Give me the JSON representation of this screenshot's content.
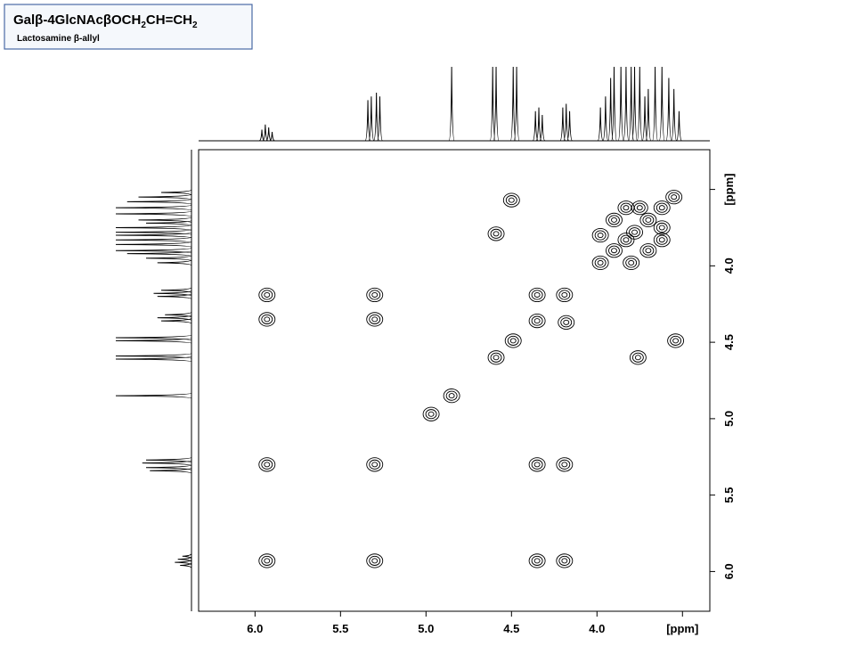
{
  "chart_data": {
    "type": "cosy",
    "title": [
      "Galβ-4GlcNAcβOCH",
      "2",
      "CH=CH",
      "2"
    ],
    "subtitle": "Lactosamine β-allyl",
    "xlim": [
      6.33,
      3.34
    ],
    "ylim": [
      3.24,
      6.26
    ],
    "xticks": [
      {
        "value": 6,
        "label": "6.0"
      },
      {
        "value": 5.5,
        "label": "5.5"
      },
      {
        "value": 5,
        "label": "5.0"
      },
      {
        "value": 4.5,
        "label": "4.5"
      },
      {
        "value": 4,
        "label": "4.0"
      },
      {
        "value": 3.5,
        "label": "[ppm]"
      }
    ],
    "yticks": [
      {
        "value": 3.5,
        "label": "[ppm]"
      },
      {
        "value": 4,
        "label": "4.0"
      },
      {
        "value": 4.5,
        "label": "4.5"
      },
      {
        "value": 5,
        "label": "5.0"
      },
      {
        "value": 5.5,
        "label": "5.5"
      },
      {
        "value": 6,
        "label": "6.0"
      }
    ],
    "color": "#000000",
    "peaks": {
      "x": [
        5.93,
        5.3,
        4.85,
        4.59,
        4.49,
        4.35,
        4.19,
        4.97,
        5.93,
        5.3,
        5.93,
        5.93,
        5.3,
        5.3,
        4.35,
        4.19,
        4.35,
        4.19,
        4.5,
        4.59,
        4.35,
        4.18,
        3.54,
        3.76,
        3.98,
        3.9,
        3.83,
        3.78,
        3.7,
        3.62,
        3.55,
        3.9,
        3.7,
        3.83,
        3.62,
        3.98,
        3.8,
        3.75,
        3.62
      ],
      "y": [
        5.93,
        5.3,
        4.85,
        4.6,
        4.49,
        4.36,
        4.19,
        4.97,
        5.3,
        5.93,
        4.19,
        4.35,
        4.19,
        4.35,
        5.3,
        5.3,
        5.93,
        5.93,
        3.57,
        3.79,
        4.19,
        4.37,
        4.49,
        4.6,
        3.98,
        3.9,
        3.83,
        3.78,
        3.7,
        3.62,
        3.55,
        3.7,
        3.9,
        3.62,
        3.83,
        3.8,
        3.98,
        3.62,
        3.75
      ]
    },
    "projection": {
      "ppm": [
        5.96,
        5.94,
        5.92,
        5.9,
        5.34,
        5.32,
        5.29,
        5.27,
        4.85,
        4.61,
        4.59,
        4.49,
        4.47,
        4.36,
        4.34,
        4.32,
        4.2,
        4.18,
        4.16,
        3.98,
        3.95,
        3.92,
        3.9,
        3.86,
        3.83,
        3.8,
        3.78,
        3.75,
        3.72,
        3.7,
        3.66,
        3.62,
        3.58,
        3.55,
        3.52
      ],
      "height": [
        15,
        22,
        18,
        12,
        55,
        60,
        65,
        60,
        100,
        100,
        100,
        100,
        100,
        40,
        45,
        35,
        45,
        50,
        40,
        45,
        60,
        85,
        100,
        100,
        100,
        100,
        100,
        100,
        60,
        70,
        100,
        100,
        85,
        70,
        40
      ]
    }
  }
}
